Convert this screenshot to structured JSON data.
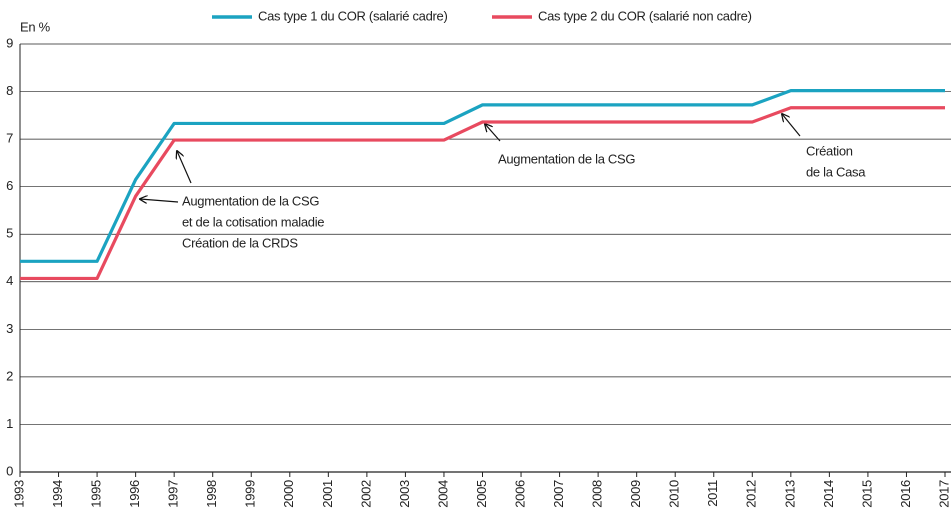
{
  "chart_data": {
    "type": "line",
    "y_label": "En %",
    "x": [
      1993,
      1994,
      1995,
      1996,
      1997,
      1998,
      1999,
      2000,
      2001,
      2002,
      2003,
      2004,
      2005,
      2006,
      2007,
      2008,
      2009,
      2010,
      2011,
      2012,
      2013,
      2014,
      2015,
      2016,
      2017
    ],
    "series": [
      {
        "name": "Cas type 1 du COR (salarié cadre)",
        "color": "#1ba3c1",
        "values": [
          4.43,
          4.43,
          4.43,
          6.15,
          7.33,
          7.33,
          7.33,
          7.33,
          7.33,
          7.33,
          7.33,
          7.33,
          7.72,
          7.72,
          7.72,
          7.72,
          7.72,
          7.72,
          7.72,
          7.72,
          8.02,
          8.02,
          8.02,
          8.02,
          8.02
        ]
      },
      {
        "name": "Cas type 2 du COR (salarié non cadre)",
        "color": "#e84a5f",
        "values": [
          4.07,
          4.07,
          4.07,
          5.8,
          6.98,
          6.98,
          6.98,
          6.98,
          6.98,
          6.98,
          6.98,
          6.98,
          7.36,
          7.36,
          7.36,
          7.36,
          7.36,
          7.36,
          7.36,
          7.36,
          7.66,
          7.66,
          7.66,
          7.66,
          7.66
        ]
      }
    ],
    "xlim": [
      1993,
      2017
    ],
    "xticks": [
      1993,
      1994,
      1995,
      1996,
      1997,
      1998,
      1999,
      2000,
      2001,
      2002,
      2003,
      2004,
      2005,
      2006,
      2007,
      2008,
      2009,
      2010,
      2011,
      2012,
      2013,
      2014,
      2015,
      2016,
      2017
    ],
    "ylim": [
      0,
      9
    ],
    "yticks": [
      0,
      1,
      2,
      3,
      4,
      5,
      6,
      7,
      8,
      9
    ],
    "grid": true,
    "legend": "top",
    "annotations": [
      [
        "Augmentation de la CSG",
        "et de la cotisation maladie",
        "Création de la CRDS"
      ],
      [
        "Augmentation de la CSG"
      ],
      [
        "Création",
        "de la Casa"
      ]
    ]
  }
}
